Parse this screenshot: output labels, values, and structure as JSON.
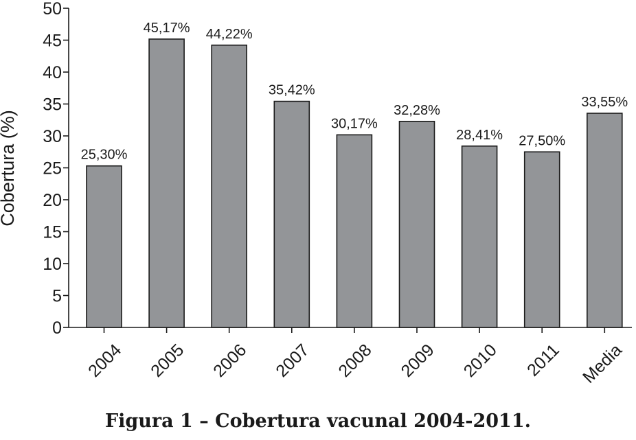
{
  "caption": "Figura 1 – Cobertura vacunal 2004-2011.",
  "chart_data": {
    "type": "bar",
    "title": "",
    "xlabel": "",
    "ylabel": "Cobertura (%)",
    "categories": [
      "2004",
      "2005",
      "2006",
      "2007",
      "2008",
      "2009",
      "2010",
      "2011",
      "Media"
    ],
    "values": [
      25.3,
      45.17,
      44.22,
      35.42,
      30.17,
      32.28,
      28.41,
      27.5,
      33.55
    ],
    "data_labels": [
      "25,30%",
      "45,17%",
      "44,22%",
      "35,42%",
      "30,17%",
      "32,28%",
      "28,41%",
      "27,50%",
      "33,55%"
    ],
    "ylim": [
      0,
      50
    ],
    "yticks": [
      0,
      5,
      10,
      15,
      20,
      25,
      30,
      35,
      40,
      45,
      50
    ],
    "bar_color": "#939598",
    "grid": false,
    "legend": "none"
  }
}
